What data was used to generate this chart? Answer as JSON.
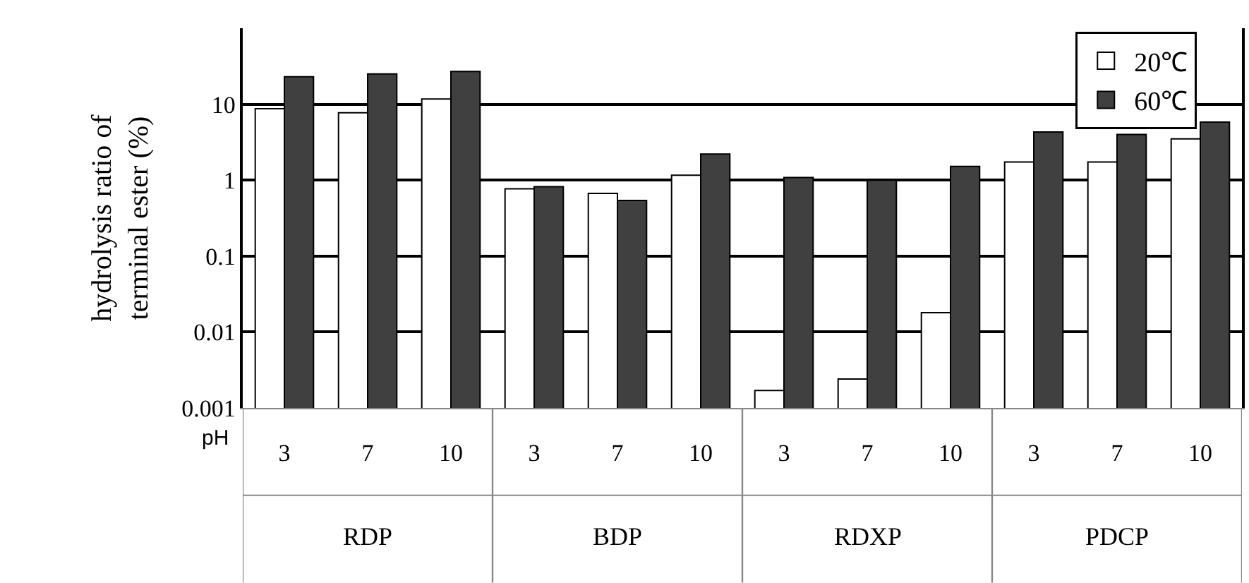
{
  "chart_data": {
    "type": "bar",
    "ylabel": "hydrolysis ratio of\nterminal ester (%)",
    "xlabel": "pH",
    "categories": [
      "3",
      "7",
      "10",
      "3",
      "7",
      "10",
      "3",
      "7",
      "10",
      "3",
      "7",
      "10"
    ],
    "annotations": [
      "RDP",
      "BDP",
      "RDXP",
      "PDCP"
    ],
    "series": [
      {
        "name": "20℃",
        "color": "#ffffff",
        "values": [
          8.7,
          7.7,
          11.7,
          0.77,
          0.67,
          1.16,
          0.0017,
          0.0024,
          0.018,
          1.73,
          1.73,
          3.5
        ]
      },
      {
        "name": "60℃",
        "color": "#404040",
        "values": [
          23,
          25,
          27,
          0.82,
          0.54,
          2.2,
          1.08,
          1.0,
          1.52,
          4.3,
          4.0,
          5.8
        ]
      }
    ],
    "log": true,
    "ylim": [
      0.001,
      100
    ],
    "yticks": [
      0.001,
      0.01,
      0.1,
      1,
      10
    ],
    "grid": "y",
    "legend": "top right"
  }
}
